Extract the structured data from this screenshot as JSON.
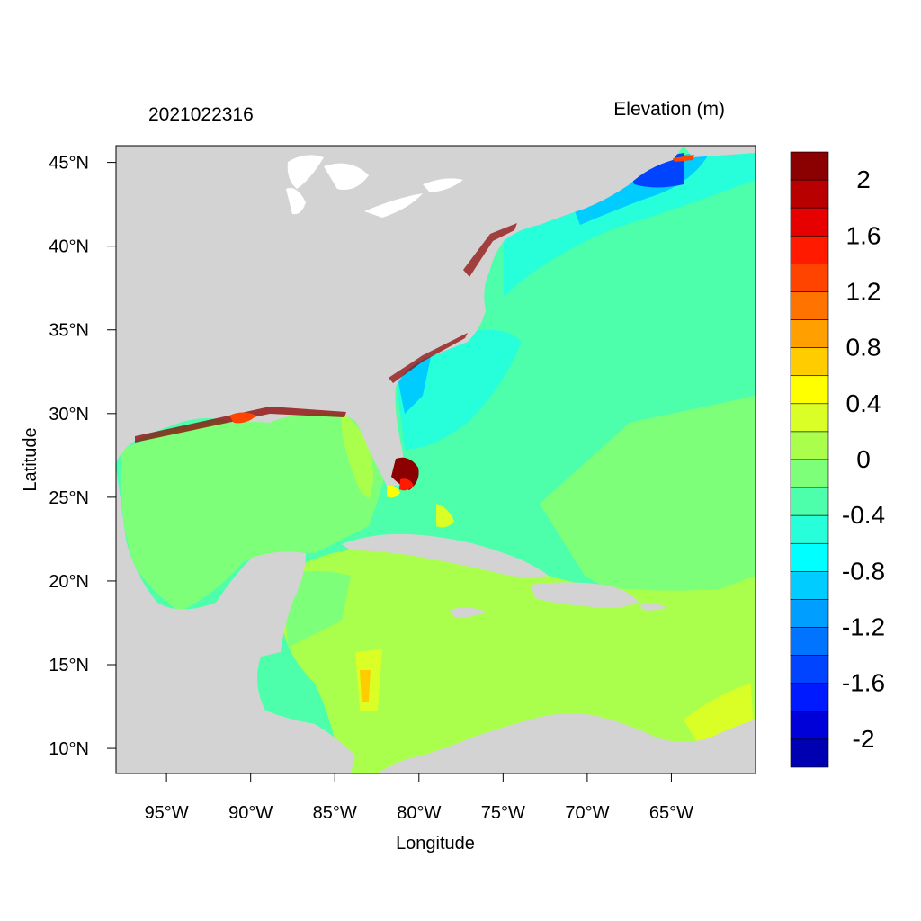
{
  "header": {
    "timestamp": "2021022316",
    "variable_title": "Elevation (m)"
  },
  "axes": {
    "xlabel": "Longitude",
    "ylabel": "Latitude",
    "lon_range": [
      -98,
      -60
    ],
    "lat_range": [
      8.5,
      46
    ],
    "lon_ticks": [
      {
        "value": -95,
        "label": "95°W"
      },
      {
        "value": -90,
        "label": "90°W"
      },
      {
        "value": -85,
        "label": "85°W"
      },
      {
        "value": -80,
        "label": "80°W"
      },
      {
        "value": -75,
        "label": "75°W"
      },
      {
        "value": -70,
        "label": "70°W"
      },
      {
        "value": -65,
        "label": "65°W"
      }
    ],
    "lat_ticks": [
      {
        "value": 45,
        "label": "45°N"
      },
      {
        "value": 40,
        "label": "40°N"
      },
      {
        "value": 35,
        "label": "35°N"
      },
      {
        "value": 30,
        "label": "30°N"
      },
      {
        "value": 25,
        "label": "25°N"
      },
      {
        "value": 20,
        "label": "20°N"
      },
      {
        "value": 15,
        "label": "15°N"
      },
      {
        "value": 10,
        "label": "10°N"
      }
    ]
  },
  "colorbar": {
    "colors_top_to_bottom": [
      "#8b0000",
      "#b80000",
      "#e60000",
      "#ff1a00",
      "#ff4400",
      "#ff7300",
      "#ff9f00",
      "#ffcc00",
      "#ffff00",
      "#d9ff26",
      "#aaff4d",
      "#7dff7a",
      "#4dffaa",
      "#26ffd9",
      "#00ffff",
      "#00ccff",
      "#009fff",
      "#0073ff",
      "#0044ff",
      "#001aff",
      "#0000d9",
      "#0000b3"
    ],
    "labels": [
      "2",
      "1.6",
      "1.2",
      "0.8",
      "0.4",
      "0",
      "-0.4",
      "-0.8",
      "-1.2",
      "-1.6",
      "-2"
    ]
  },
  "colors": {
    "land": "#d3d3d3",
    "lakes": "#ffffff"
  }
}
